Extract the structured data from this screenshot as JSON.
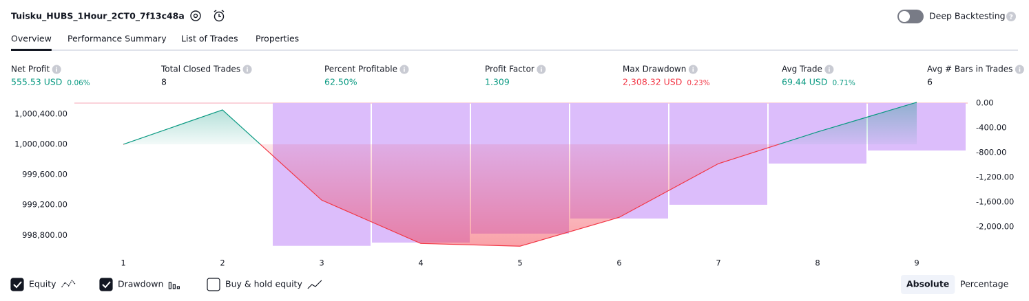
{
  "header": {
    "title": "Tuisku_HUBS_1Hour_2CT0_7f13c48a",
    "deep_backtesting": "Deep Backtesting"
  },
  "tabs": [
    "Overview",
    "Performance Summary",
    "List of Trades",
    "Properties"
  ],
  "metrics": [
    {
      "label": "Net Profit",
      "value": "555.53 USD",
      "percent": "0.06%",
      "color": "#089981"
    },
    {
      "label": "Total Closed Trades",
      "value": "8",
      "color": "#131722"
    },
    {
      "label": "Percent Profitable",
      "value": "62.50%",
      "color": "#089981"
    },
    {
      "label": "Profit Factor",
      "value": "1.309",
      "color": "#089981"
    },
    {
      "label": "Max Drawdown",
      "value": "2,308.32 USD",
      "percent": "0.23%",
      "color": "#f23645"
    },
    {
      "label": "Avg Trade",
      "value": "69.44 USD",
      "percent": "0.71%",
      "color": "#089981"
    },
    {
      "label": "Avg # Bars in Trades",
      "value": "6",
      "color": "#131722"
    }
  ],
  "chart_data": {
    "type": "line",
    "categories": [
      "1",
      "2",
      "3",
      "4",
      "5",
      "6",
      "7",
      "8",
      "9"
    ],
    "series": [
      {
        "name": "Equity",
        "type": "line",
        "axis": "y",
        "color": "#089981",
        "negative_color": "#f23645",
        "values": [
          1000000,
          1000455,
          999264,
          998691,
          998655,
          999036,
          999745,
          1000164,
          1000555.53
        ]
      },
      {
        "name": "Drawdown",
        "type": "bar",
        "axis": "y2",
        "color": "#dcbdfb",
        "values": [
          null,
          null,
          -2308.32,
          -2256,
          -2111,
          -1867,
          -1644,
          -978,
          -767
        ]
      }
    ],
    "ylim": [
      998530,
      1000545
    ],
    "yticks": [
      {
        "value": 1000400,
        "label": "1,000,400.00"
      },
      {
        "value": 1000000,
        "label": "1,000,000.00"
      },
      {
        "value": 999600,
        "label": "999,600.00"
      },
      {
        "value": 999200,
        "label": "999,200.00"
      },
      {
        "value": 998800,
        "label": "998,800.00"
      }
    ],
    "y2lim": [
      -2467,
      0
    ],
    "y2ticks": [
      {
        "value": 0,
        "label": "0.00"
      },
      {
        "value": -400,
        "label": "-400.00"
      },
      {
        "value": -800,
        "label": "-800.00"
      },
      {
        "value": -1200,
        "label": "-1,200.00"
      },
      {
        "value": -1600,
        "label": "-1,600.00"
      },
      {
        "value": -2000,
        "label": "-2,000.00"
      }
    ]
  },
  "legend_toggles": [
    {
      "label": "Equity",
      "checked": true
    },
    {
      "label": "Drawdown",
      "checked": true
    },
    {
      "label": "Buy & hold equity",
      "checked": false
    }
  ],
  "view_modes": {
    "options": [
      "Absolute",
      "Percentage"
    ],
    "active": 0
  }
}
